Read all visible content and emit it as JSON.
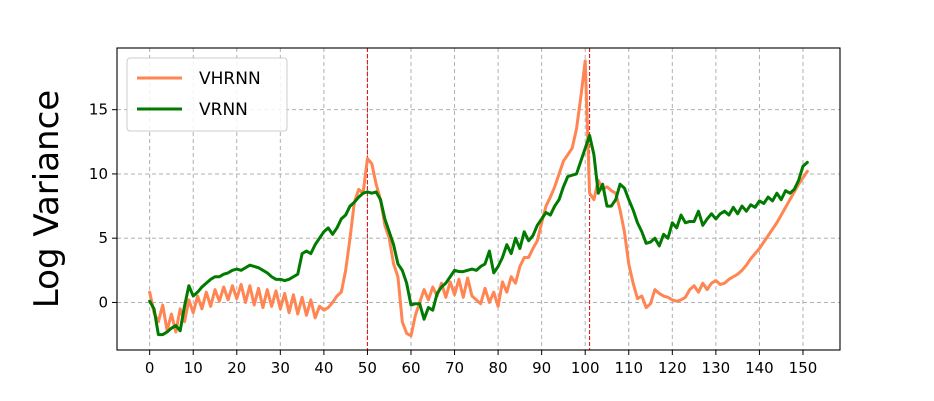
{
  "chart_data": {
    "type": "line",
    "title": "",
    "xlabel": "",
    "ylabel": "Log Variance",
    "xlim": [
      -7.5,
      158.5
    ],
    "ylim": [
      -3.7,
      19.8
    ],
    "xticks": [
      0,
      10,
      20,
      30,
      40,
      50,
      60,
      70,
      80,
      90,
      100,
      110,
      120,
      130,
      140,
      150
    ],
    "yticks": [
      0,
      5,
      10,
      15
    ],
    "grid": true,
    "legend_position": "top-left",
    "vlines": [
      50,
      101
    ],
    "vline_color": "#e31a1c",
    "series": [
      {
        "name": "VHRNN",
        "color": "#ff8552",
        "x": [
          0,
          1,
          2,
          3,
          4,
          5,
          6,
          7,
          8,
          9,
          10,
          11,
          12,
          13,
          14,
          15,
          16,
          17,
          18,
          19,
          20,
          21,
          22,
          23,
          24,
          25,
          26,
          27,
          28,
          29,
          30,
          31,
          32,
          33,
          34,
          35,
          36,
          37,
          38,
          39,
          40,
          41,
          42,
          43,
          44,
          45,
          46,
          47,
          48,
          49,
          50,
          51,
          52,
          53,
          54,
          55,
          56,
          57,
          58,
          59,
          60,
          61,
          62,
          63,
          64,
          65,
          66,
          67,
          68,
          69,
          70,
          71,
          72,
          73,
          74,
          75,
          76,
          77,
          78,
          79,
          80,
          81,
          82,
          83,
          84,
          85,
          86,
          87,
          88,
          89,
          90,
          91,
          92,
          93,
          94,
          95,
          96,
          97,
          98,
          99,
          100,
          101,
          102,
          103,
          104,
          105,
          106,
          107,
          108,
          109,
          110,
          111,
          112,
          113,
          114,
          115,
          116,
          117,
          118,
          119,
          120,
          121,
          122,
          123,
          124,
          125,
          126,
          127,
          128,
          129,
          130,
          131,
          132,
          133,
          134,
          135,
          136,
          137,
          138,
          139,
          140,
          141,
          142,
          143,
          144,
          145,
          146,
          147,
          148,
          149,
          150,
          151
        ],
        "values": [
          0.8,
          -0.8,
          -1.5,
          -0.2,
          -2.2,
          -0.9,
          -2.3,
          -0.5,
          -1.5,
          0.2,
          -0.8,
          0.5,
          -0.5,
          0.8,
          -0.3,
          1.0,
          0.1,
          1.2,
          0.2,
          1.3,
          0.3,
          1.4,
          0.0,
          1.3,
          -0.2,
          1.1,
          -0.4,
          1.0,
          -0.3,
          0.9,
          -0.5,
          0.7,
          -0.8,
          0.6,
          -0.9,
          0.4,
          -1.0,
          0.2,
          -1.2,
          -0.3,
          -0.6,
          -0.4,
          0.0,
          0.5,
          0.8,
          2.5,
          5.0,
          7.8,
          8.8,
          8.5,
          11.2,
          10.8,
          9.2,
          8.0,
          6.0,
          5.0,
          3.0,
          2.0,
          -1.5,
          -2.4,
          -2.6,
          -1.0,
          0.0,
          1.0,
          0.2,
          1.2,
          0.5,
          1.5,
          0.4,
          1.6,
          0.6,
          1.8,
          0.4,
          1.9,
          0.5,
          0.2,
          -0.1,
          1.1,
          0.0,
          0.8,
          -0.3,
          1.6,
          0.8,
          2.0,
          1.5,
          2.8,
          3.5,
          3.5,
          4.2,
          4.8,
          6.2,
          7.5,
          8.2,
          9.0,
          10.0,
          11.0,
          11.5,
          12.0,
          13.5,
          16.0,
          18.8,
          8.5,
          8.0,
          9.5,
          8.8,
          9.0,
          8.7,
          8.5,
          7.2,
          5.5,
          3.0,
          1.5,
          0.3,
          0.5,
          -0.4,
          -0.1,
          1.0,
          0.7,
          0.5,
          0.4,
          0.2,
          0.1,
          0.2,
          0.4,
          1.0,
          1.3,
          0.8,
          1.5,
          1.0,
          1.5,
          1.7,
          1.4,
          1.5,
          1.8,
          2.0,
          2.2,
          2.5,
          2.9,
          3.4,
          3.8,
          4.2,
          4.7,
          5.2,
          5.7,
          6.2,
          6.8,
          7.4,
          8.0,
          8.6,
          9.2,
          9.7,
          10.2
        ]
      },
      {
        "name": "VRNN",
        "color": "#007a00",
        "x": [
          0,
          1,
          2,
          3,
          4,
          5,
          6,
          7,
          8,
          9,
          10,
          11,
          12,
          13,
          14,
          15,
          16,
          17,
          18,
          19,
          20,
          21,
          22,
          23,
          24,
          25,
          26,
          27,
          28,
          29,
          30,
          31,
          32,
          33,
          34,
          35,
          36,
          37,
          38,
          39,
          40,
          41,
          42,
          43,
          44,
          45,
          46,
          47,
          48,
          49,
          50,
          51,
          52,
          53,
          54,
          55,
          56,
          57,
          58,
          59,
          60,
          61,
          62,
          63,
          64,
          65,
          66,
          67,
          68,
          69,
          70,
          71,
          72,
          73,
          74,
          75,
          76,
          77,
          78,
          79,
          80,
          81,
          82,
          83,
          84,
          85,
          86,
          87,
          88,
          89,
          90,
          91,
          92,
          93,
          94,
          95,
          96,
          97,
          98,
          99,
          100,
          101,
          102,
          103,
          104,
          105,
          106,
          107,
          108,
          109,
          110,
          111,
          112,
          113,
          114,
          115,
          116,
          117,
          118,
          119,
          120,
          121,
          122,
          123,
          124,
          125,
          126,
          127,
          128,
          129,
          130,
          131,
          132,
          133,
          134,
          135,
          136,
          137,
          138,
          139,
          140,
          141,
          142,
          143,
          144,
          145,
          146,
          147,
          148,
          149,
          150,
          151
        ],
        "values": [
          0.1,
          -0.5,
          -2.5,
          -2.5,
          -2.3,
          -2.0,
          -1.8,
          -2.2,
          -0.3,
          1.3,
          0.5,
          0.8,
          1.2,
          1.5,
          1.8,
          2.0,
          2.0,
          2.2,
          2.3,
          2.5,
          2.6,
          2.5,
          2.7,
          2.9,
          2.8,
          2.7,
          2.5,
          2.3,
          2.0,
          1.8,
          1.8,
          1.7,
          1.8,
          2.0,
          2.2,
          3.8,
          4.0,
          3.8,
          4.5,
          5.0,
          5.5,
          5.8,
          5.3,
          5.8,
          6.5,
          6.8,
          7.5,
          7.8,
          8.2,
          8.5,
          8.6,
          8.5,
          8.6,
          8.0,
          6.5,
          5.5,
          4.5,
          3.0,
          2.5,
          1.5,
          -0.2,
          -0.1,
          -0.1,
          -1.3,
          -0.4,
          -0.6,
          0.7,
          1.2,
          1.5,
          2.0,
          2.5,
          2.4,
          2.4,
          2.5,
          2.6,
          2.5,
          2.8,
          3.0,
          4.0,
          2.3,
          2.8,
          3.5,
          4.5,
          3.8,
          5.0,
          4.2,
          5.5,
          4.8,
          5.2,
          6.0,
          6.5,
          7.0,
          6.8,
          7.5,
          8.0,
          9.0,
          9.8,
          9.9,
          10.0,
          11.0,
          12.0,
          13.0,
          11.5,
          8.5,
          9.2,
          7.5,
          7.5,
          8.0,
          9.2,
          8.9,
          8.0,
          7.2,
          6.2,
          5.5,
          4.6,
          4.7,
          5.0,
          4.4,
          5.3,
          5.0,
          6.2,
          5.8,
          6.8,
          6.2,
          6.3,
          6.3,
          7.1,
          6.0,
          6.5,
          6.9,
          6.5,
          6.9,
          7.1,
          6.8,
          7.4,
          6.9,
          7.5,
          7.1,
          7.6,
          7.4,
          7.9,
          7.7,
          8.2,
          7.9,
          8.5,
          8.0,
          8.7,
          8.5,
          8.8,
          9.5,
          10.6,
          10.9
        ]
      }
    ]
  }
}
